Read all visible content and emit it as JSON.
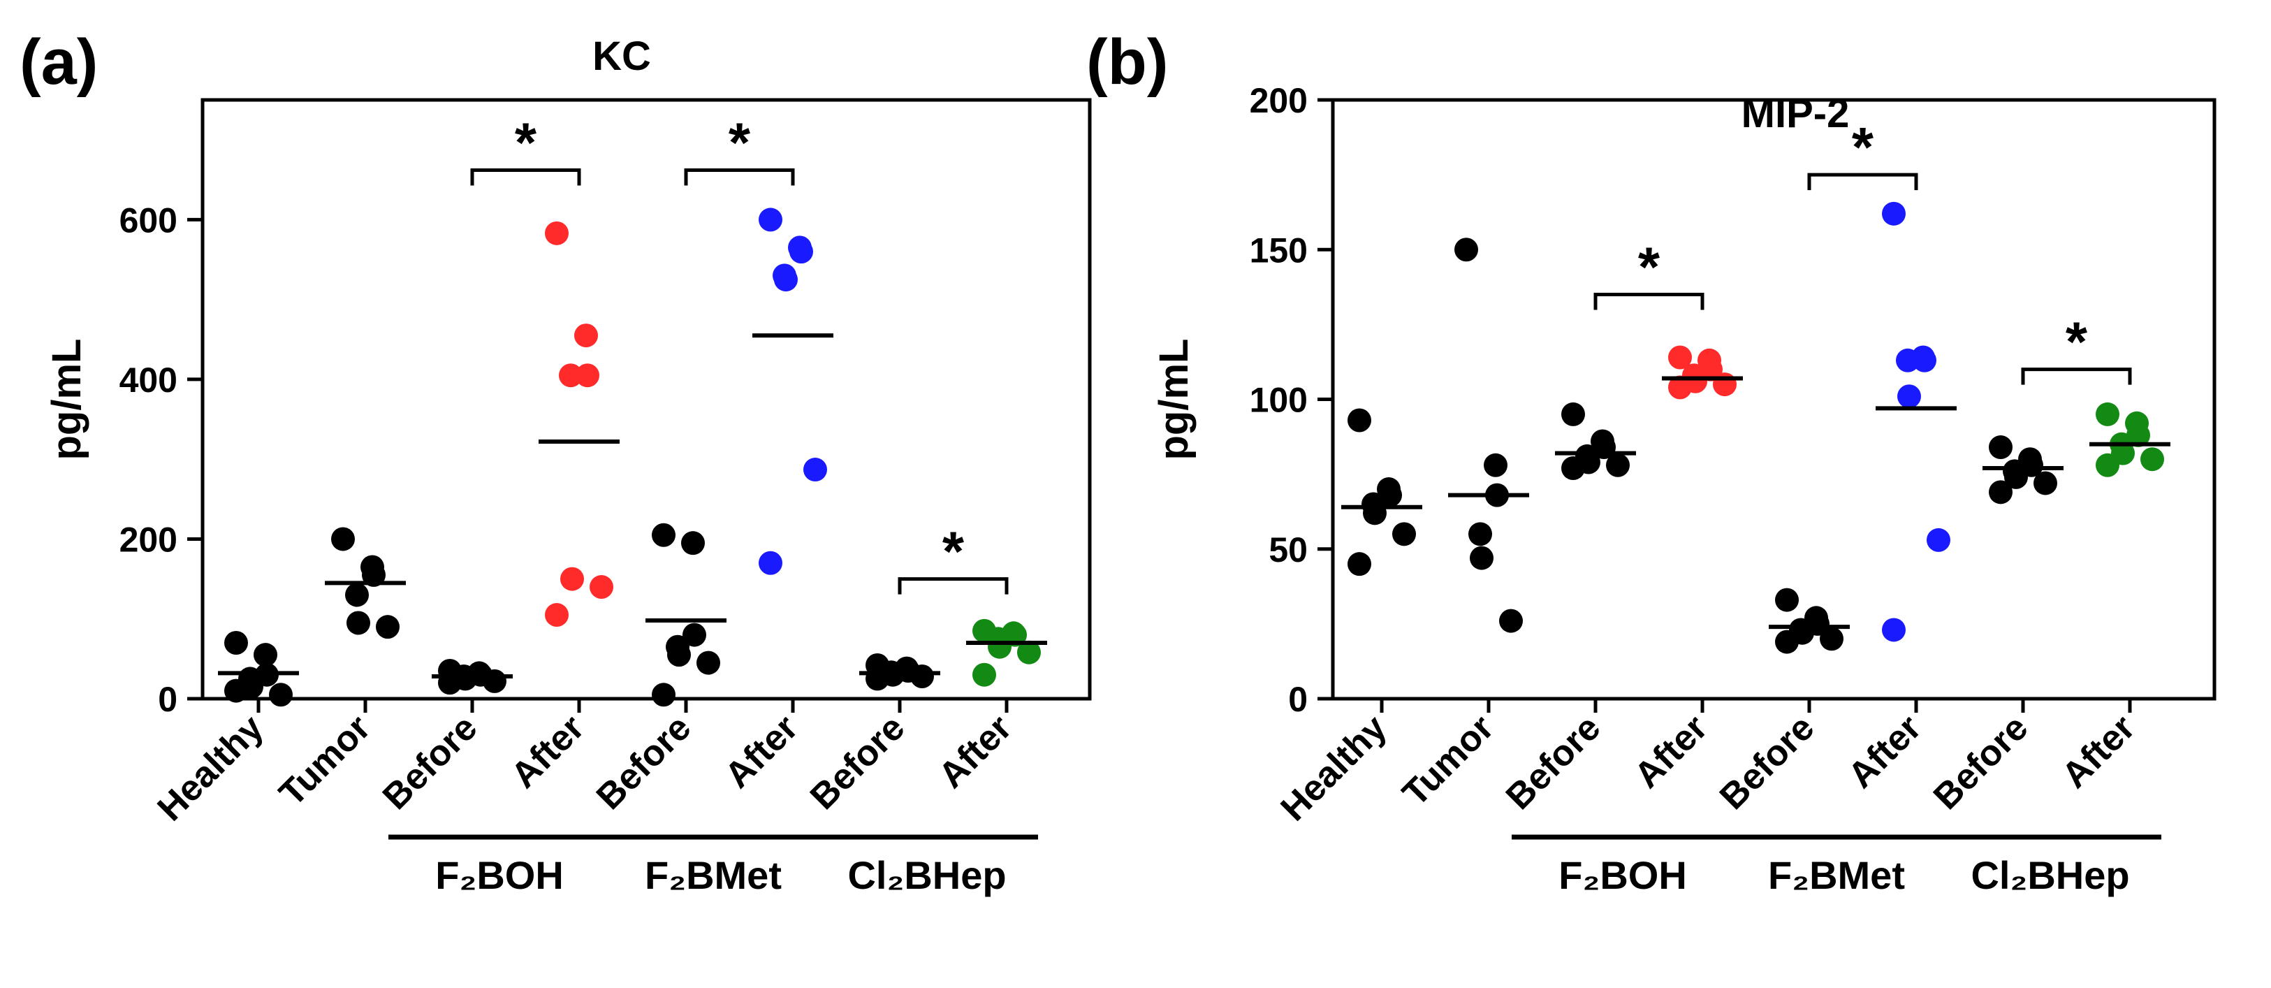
{
  "chart_data": [
    {
      "panel_label": "(a)",
      "title": "KC",
      "type": "scatter",
      "ylabel": "pg/mL",
      "ylim": [
        0,
        750
      ],
      "yticks": [
        0,
        200,
        400,
        600
      ],
      "categories": [
        "Healthy",
        "Tumor",
        "Before",
        "After",
        "Before",
        "After",
        "Before",
        "After"
      ],
      "groups": [
        {
          "label": "F₂BOH",
          "from": 2,
          "to": 3
        },
        {
          "label": "F₂BMet",
          "from": 4,
          "to": 5
        },
        {
          "label": "Cl₂BHep",
          "from": 6,
          "to": 7
        }
      ],
      "series": [
        {
          "color": "#000000",
          "mean": 32,
          "values": [
            70,
            55,
            30,
            25,
            15,
            5,
            10
          ]
        },
        {
          "color": "#000000",
          "mean": 145,
          "values": [
            200,
            165,
            155,
            130,
            95,
            90
          ]
        },
        {
          "color": "#000000",
          "mean": 28,
          "values": [
            35,
            32,
            30,
            28,
            25,
            22,
            20
          ]
        },
        {
          "color": "#ff2a2a",
          "mean": 322,
          "values": [
            583,
            455,
            405,
            405,
            150,
            140,
            105
          ]
        },
        {
          "color": "#000000",
          "mean": 98,
          "values": [
            205,
            195,
            80,
            65,
            55,
            45,
            5
          ]
        },
        {
          "color": "#1a1aff",
          "mean": 455,
          "values": [
            600,
            565,
            560,
            530,
            525,
            287,
            170
          ]
        },
        {
          "color": "#000000",
          "mean": 32,
          "values": [
            42,
            38,
            35,
            33,
            30,
            28,
            25
          ]
        },
        {
          "color": "#138a13",
          "mean": 70,
          "values": [
            85,
            82,
            80,
            75,
            65,
            58,
            30
          ]
        }
      ],
      "significance": [
        {
          "from": 2,
          "to": 3,
          "label": "*",
          "y": 662
        },
        {
          "from": 4,
          "to": 5,
          "label": "*",
          "y": 662
        },
        {
          "from": 6,
          "to": 7,
          "label": "*",
          "y": 150
        }
      ]
    },
    {
      "panel_label": "(b)",
      "title": "MIP-2",
      "type": "scatter",
      "ylabel": "pg/mL",
      "ylim": [
        0,
        200
      ],
      "yticks": [
        0,
        50,
        100,
        150,
        200
      ],
      "categories": [
        "Healthy",
        "Tumor",
        "Before",
        "After",
        "Before",
        "After",
        "Before",
        "After"
      ],
      "groups": [
        {
          "label": "F₂BOH",
          "from": 2,
          "to": 3
        },
        {
          "label": "F₂BMet",
          "from": 4,
          "to": 5
        },
        {
          "label": "Cl₂BHep",
          "from": 6,
          "to": 7
        }
      ],
      "series": [
        {
          "color": "#000000",
          "mean": 64,
          "values": [
            93,
            70,
            68,
            65,
            62,
            55,
            45
          ]
        },
        {
          "color": "#000000",
          "mean": 68,
          "values": [
            150,
            78,
            68,
            55,
            47,
            26
          ]
        },
        {
          "color": "#000000",
          "mean": 82,
          "values": [
            95,
            86,
            84,
            81,
            79,
            78,
            77
          ]
        },
        {
          "color": "#ff2a2a",
          "mean": 107,
          "values": [
            114,
            113,
            110,
            108,
            106,
            105,
            104
          ]
        },
        {
          "color": "#000000",
          "mean": 24,
          "values": [
            33,
            27,
            25,
            23,
            22,
            20,
            19
          ]
        },
        {
          "color": "#1a1aff",
          "mean": 97,
          "values": [
            162,
            114,
            113,
            113,
            101,
            53,
            23
          ]
        },
        {
          "color": "#000000",
          "mean": 77,
          "values": [
            84,
            80,
            78,
            76,
            74,
            72,
            69
          ]
        },
        {
          "color": "#138a13",
          "mean": 85,
          "values": [
            95,
            92,
            88,
            85,
            82,
            80,
            78
          ]
        }
      ],
      "significance": [
        {
          "from": 2,
          "to": 3,
          "label": "*",
          "y": 135
        },
        {
          "from": 4,
          "to": 5,
          "label": "*",
          "y": 175
        },
        {
          "from": 6,
          "to": 7,
          "label": "*",
          "y": 110
        }
      ]
    }
  ]
}
